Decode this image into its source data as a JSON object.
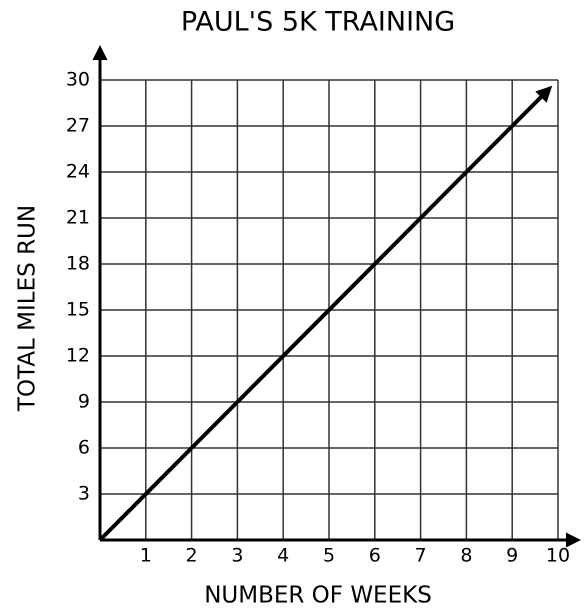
{
  "chart_data": {
    "type": "line",
    "title": "PAUL'S 5K TRAINING",
    "xlabel": "NUMBER OF WEEKS",
    "ylabel": "TOTAL MILES RUN",
    "x": [
      0,
      9.8
    ],
    "values": [
      0,
      29.4
    ],
    "color": "#000000",
    "xlim": [
      0,
      10
    ],
    "ylim": [
      0,
      30
    ],
    "xticks": [
      1,
      2,
      3,
      4,
      5,
      6,
      7,
      8,
      9,
      10
    ],
    "yticks": [
      3,
      6,
      9,
      12,
      15,
      18,
      21,
      24,
      27,
      30
    ],
    "grid": true
  }
}
